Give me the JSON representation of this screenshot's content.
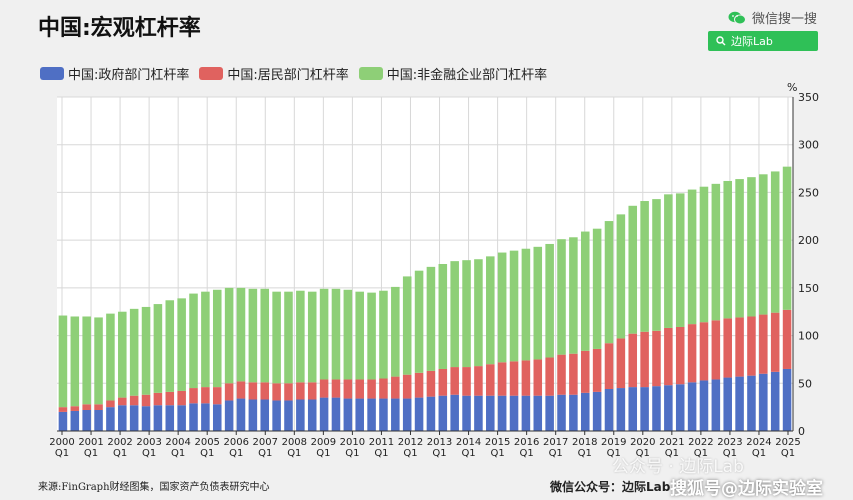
{
  "header": {
    "title": "中国:宏观杠杆率",
    "wechat_label": "微信搜一搜",
    "search_text": "边际Lab"
  },
  "footer": {
    "source": "来源:FinGraph财经图集，国家资产负债表研究中心",
    "account": "微信公众号：边际Lab",
    "watermark_top": "公众号 · 边际Lab",
    "watermark_bottom": "搜狐号@边际实验室"
  },
  "chart_data": {
    "type": "bar",
    "stacked": true,
    "unit": "%",
    "ylim": [
      0,
      350
    ],
    "yticks": [
      0,
      50,
      100,
      150,
      200,
      250,
      300,
      350
    ],
    "grid": true,
    "legend_position": "top-left",
    "x_labels": [
      {
        "year": "2000",
        "q": "Q1"
      },
      {
        "year": "2001",
        "q": "Q1"
      },
      {
        "year": "2002",
        "q": "Q1"
      },
      {
        "year": "2003",
        "q": "Q1"
      },
      {
        "year": "2004",
        "q": "Q1"
      },
      {
        "year": "2005",
        "q": "Q1"
      },
      {
        "year": "2006",
        "q": "Q1"
      },
      {
        "year": "2007",
        "q": "Q1"
      },
      {
        "year": "2008",
        "q": "Q1"
      },
      {
        "year": "2009",
        "q": "Q1"
      },
      {
        "year": "2010",
        "q": "Q1"
      },
      {
        "year": "2011",
        "q": "Q1"
      },
      {
        "year": "2012",
        "q": "Q1"
      },
      {
        "year": "2013",
        "q": "Q1"
      },
      {
        "year": "2014",
        "q": "Q1"
      },
      {
        "year": "2015",
        "q": "Q1"
      },
      {
        "year": "2016",
        "q": "Q1"
      },
      {
        "year": "2017",
        "q": "Q1"
      },
      {
        "year": "2018",
        "q": "Q1"
      },
      {
        "year": "2019",
        "q": "Q1"
      },
      {
        "year": "2020",
        "q": "Q1"
      },
      {
        "year": "2021",
        "q": "Q1"
      },
      {
        "year": "2022",
        "q": "Q1"
      },
      {
        "year": "2023",
        "q": "Q1"
      },
      {
        "year": "2024",
        "q": "Q1"
      },
      {
        "year": "2025",
        "q": "Q1"
      }
    ],
    "series": [
      {
        "name": "中国:政府部门杠杆率",
        "color": "#4f6fc4",
        "values": [
          20,
          21,
          22,
          22,
          25,
          27,
          27,
          26,
          27,
          27,
          27,
          29,
          29,
          28,
          32,
          34,
          33,
          33,
          32,
          32,
          33,
          33,
          35,
          35,
          34,
          34,
          34,
          34,
          34,
          34,
          35,
          36,
          37,
          38,
          37,
          37,
          37,
          37,
          37,
          37,
          37,
          37,
          38,
          38,
          40,
          41,
          44,
          45,
          46,
          46,
          47,
          48,
          49,
          51,
          53,
          54,
          56,
          57,
          58,
          60,
          62,
          65
        ]
      },
      {
        "name": "中国:居民部门杠杆率",
        "color": "#e0625f",
        "values": [
          5,
          5,
          6,
          6,
          7,
          8,
          10,
          12,
          13,
          14,
          15,
          16,
          17,
          18,
          18,
          18,
          18,
          18,
          18,
          18,
          18,
          18,
          19,
          19,
          20,
          20,
          20,
          21,
          23,
          25,
          26,
          27,
          28,
          29,
          30,
          31,
          33,
          35,
          36,
          37,
          38,
          40,
          42,
          43,
          44,
          45,
          48,
          52,
          56,
          58,
          58,
          60,
          60,
          61,
          61,
          62,
          62,
          62,
          62,
          62,
          62,
          62
        ]
      },
      {
        "name": "中国:非金融企业部门杠杆率",
        "color": "#8ecf77",
        "values": [
          96,
          94,
          92,
          91,
          91,
          90,
          91,
          92,
          93,
          96,
          97,
          99,
          100,
          102,
          100,
          98,
          98,
          98,
          96,
          96,
          96,
          95,
          95,
          95,
          94,
          92,
          91,
          92,
          94,
          103,
          107,
          109,
          110,
          111,
          112,
          112,
          113,
          115,
          116,
          117,
          118,
          119,
          121,
          122,
          125,
          126,
          128,
          130,
          134,
          137,
          138,
          140,
          140,
          141,
          142,
          143,
          144,
          145,
          146,
          147,
          148,
          150
        ]
      }
    ]
  }
}
